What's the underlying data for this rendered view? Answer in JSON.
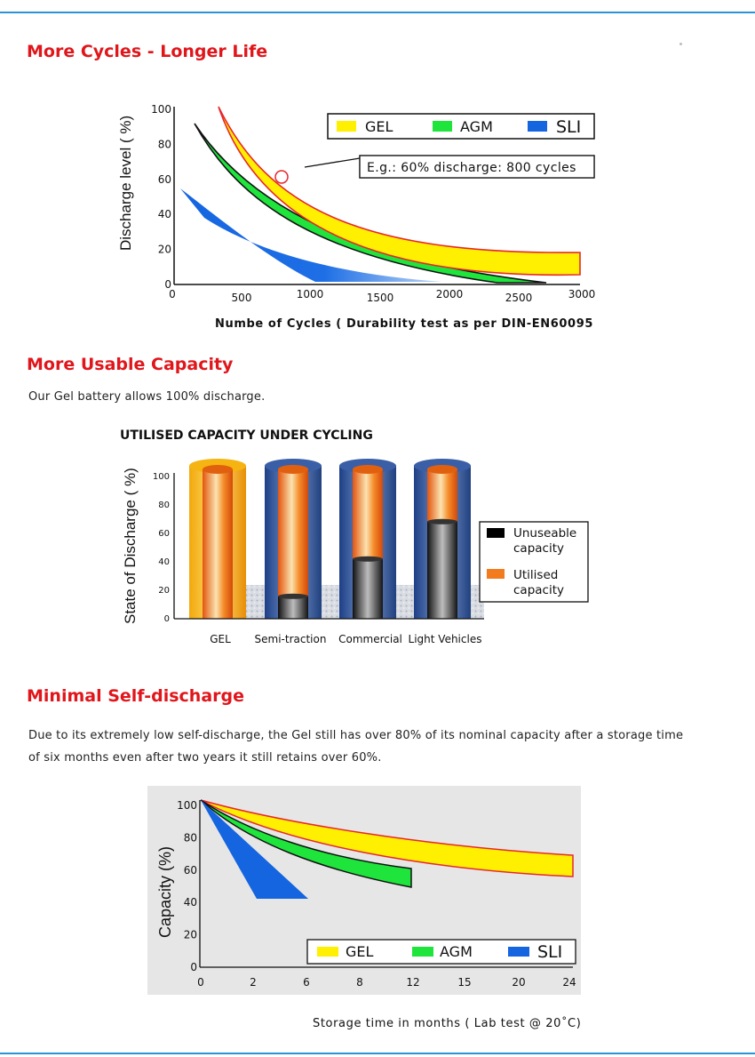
{
  "sections": {
    "cycles": {
      "heading": "More Cycles -  Longer Life",
      "xcaption": "Numbe of Cycles ( Durability test as per DIN-EN60095"
    },
    "capacity": {
      "heading": "More Usable Capacity",
      "text": "Our  Gel battery allows 100% discharge.",
      "chart_title": "UTILISED CAPACITY UNDER CYCLING"
    },
    "selfdischarge": {
      "heading": "Minimal Self-discharge",
      "text_line1": "Due to its extremely low self-discharge, the Gel still has over 80% of its nominal capacity after a storage time",
      "text_line2": "of six  months  even after two years it still retains over 60%.",
      "xcaption": "Storage time in months ( Lab test @ 20˚C)"
    }
  },
  "colors": {
    "gel": "#ffef00",
    "agm": "#1ee43c",
    "sli": "#1565e0",
    "heading": "#e0161b",
    "rule": "#2a93d5"
  },
  "chart_data": [
    {
      "type": "area",
      "ylabel": "Discharge level ( %)",
      "xlim": [
        0,
        3000
      ],
      "ylim": [
        0,
        100
      ],
      "xticks": [
        "0",
        "500",
        "1000",
        "1500",
        "2000",
        "2500",
        "3000"
      ],
      "yticks": [
        "0",
        "20",
        "40",
        "60",
        "80",
        "100"
      ],
      "legend": [
        "GEL",
        "AGM",
        "SLI"
      ],
      "annotation": "E.g.: 60% discharge: 800 cycles",
      "series": [
        {
          "name": "GEL",
          "x": [
            300,
            800,
            1500,
            2000,
            2500,
            3000
          ],
          "y": [
            100,
            60,
            30,
            18,
            12,
            12
          ]
        },
        {
          "name": "AGM",
          "x": [
            150,
            500,
            1000,
            1500,
            2000,
            2700
          ],
          "y": [
            90,
            55,
            30,
            15,
            6,
            0
          ]
        },
        {
          "name": "SLI",
          "x": [
            50,
            300,
            600,
            1000
          ],
          "y": [
            53,
            30,
            12,
            0
          ]
        }
      ]
    },
    {
      "type": "bar",
      "ylabel": "State of Discharge ( %)",
      "ylim": [
        0,
        100
      ],
      "yticks": [
        "0",
        "20",
        "40",
        "60",
        "80",
        "100"
      ],
      "categories": [
        "GEL",
        "Semi-traction",
        "Commercial",
        "Light Vehicles"
      ],
      "series": [
        {
          "name": "Utilised capacity",
          "values": [
            100,
            85,
            60,
            35
          ]
        },
        {
          "name": "Unuseable capacity",
          "values": [
            0,
            15,
            40,
            65
          ]
        }
      ],
      "legend": [
        "Unuseable capacity",
        "Utilised capacity"
      ]
    },
    {
      "type": "area",
      "ylabel": "Capacity (%)",
      "xlim": [
        0,
        24
      ],
      "ylim": [
        0,
        100
      ],
      "xticks": [
        "0",
        "2",
        "6",
        "8",
        "12",
        "15",
        "20",
        "24"
      ],
      "yticks": [
        "0",
        "20",
        "40",
        "60",
        "80",
        "100"
      ],
      "legend": [
        "GEL",
        "AGM",
        "SLI"
      ],
      "series": [
        {
          "name": "GEL",
          "x": [
            0,
            6,
            12,
            18,
            24
          ],
          "y": [
            100,
            88,
            76,
            68,
            62
          ]
        },
        {
          "name": "AGM",
          "x": [
            0,
            4,
            8,
            12
          ],
          "y": [
            100,
            80,
            65,
            55
          ]
        },
        {
          "name": "SLI",
          "x": [
            0,
            2,
            4,
            6
          ],
          "y": [
            100,
            70,
            50,
            42
          ]
        }
      ]
    }
  ]
}
